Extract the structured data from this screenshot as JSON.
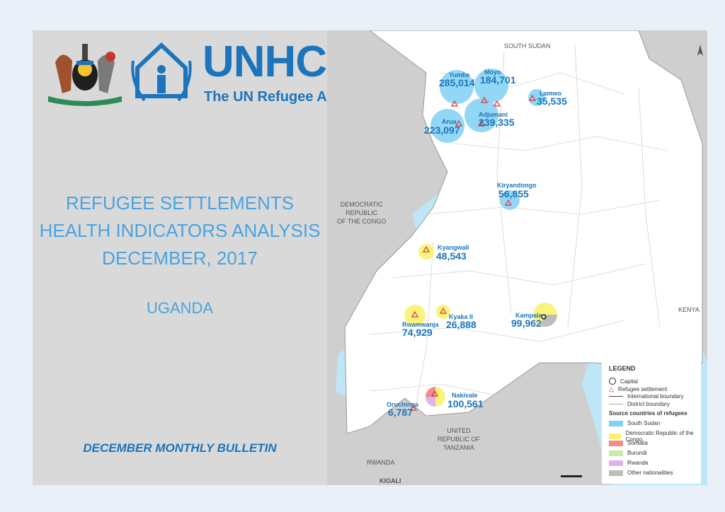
{
  "logos": {
    "unhcr_name": "UNHCR",
    "unhcr_tagline": "The UN Refugee Agency"
  },
  "title": {
    "line1": "REFUGEE SETTLEMENTS",
    "line2": "HEALTH INDICATORS ANALYSIS",
    "line3": "DECEMBER, 2017"
  },
  "country": "UGANDA",
  "bulletin": "DECEMBER MONTHLY BULLETIN",
  "map": {
    "neighbors": {
      "south_sudan": "SOUTH SUDAN",
      "drc": [
        "DEMOCRATIC",
        "REPUBLIC",
        "OF THE CONGO"
      ],
      "kenya": "KENYA",
      "tanzania": [
        "UNITED",
        "REPUBLIC OF",
        "TANZANIA"
      ],
      "rwanda": "RWANDA",
      "kigali": "KIGALI"
    },
    "settlements": [
      {
        "name": "Yumbe",
        "value": "285,014"
      },
      {
        "name": "Moyo",
        "value": "184,701"
      },
      {
        "name": "Lamwo",
        "value": "35,535"
      },
      {
        "name": "Arua",
        "value": "223,097"
      },
      {
        "name": "Adjumani",
        "value": "239,335"
      },
      {
        "name": "Kiryandongo",
        "value": "56,855"
      },
      {
        "name": "Kyangwali",
        "value": "48,543"
      },
      {
        "name": "Rwamwanja",
        "value": "74,929"
      },
      {
        "name": "Kyaka II",
        "value": "26,888"
      },
      {
        "name": "Kampala",
        "value": "99,962"
      },
      {
        "name": "Nakivale",
        "value": "100,561"
      },
      {
        "name": "Oruchinga",
        "value": "6,787"
      }
    ],
    "legend": {
      "title": "LEGEND",
      "capital": "Capital",
      "refugee_settlement": "Refugee settlement",
      "international_boundary": "International boundary",
      "district_boundary": "District boundary",
      "source_title": "Source countries of refugees",
      "sources": [
        {
          "label": "South Sudan",
          "color": "#7fd0f5"
        },
        {
          "label": "Democratic Republic of the Congo",
          "color": "#fbf36e"
        },
        {
          "label": "Somalia",
          "color": "#f48b8b"
        },
        {
          "label": "Burundi",
          "color": "#c8eba6"
        },
        {
          "label": "Rwanda",
          "color": "#dcb4ec"
        },
        {
          "label": "Other nationalities",
          "color": "#bdbdbd"
        }
      ]
    }
  }
}
